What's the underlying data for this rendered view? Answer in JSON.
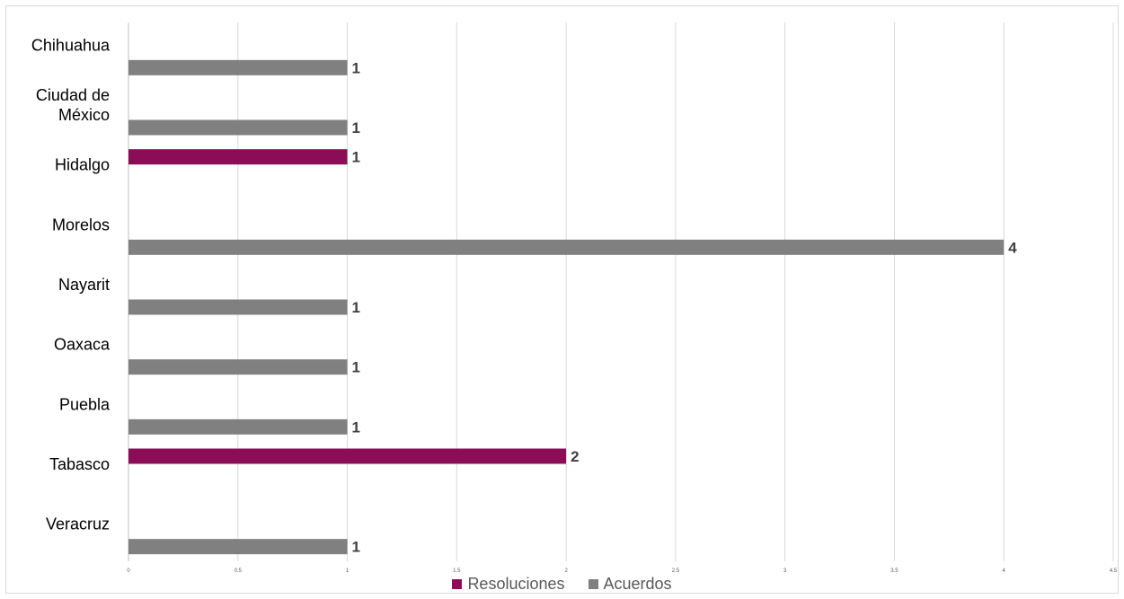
{
  "chart_data": {
    "type": "bar",
    "orientation": "horizontal",
    "categories": [
      "Chihuahua",
      "Ciudad de México",
      "Hidalgo",
      "Morelos",
      "Nayarit",
      "Oaxaca",
      "Puebla",
      "Tabasco",
      "Veracruz"
    ],
    "category_lines": [
      [
        "Chihuahua"
      ],
      [
        "Ciudad de",
        "México"
      ],
      [
        "Hidalgo"
      ],
      [
        "Morelos"
      ],
      [
        "Nayarit"
      ],
      [
        "Oaxaca"
      ],
      [
        "Puebla"
      ],
      [
        "Tabasco"
      ],
      [
        "Veracruz"
      ]
    ],
    "series": [
      {
        "name": "Resoluciones",
        "color": "#8b0d57",
        "values": [
          null,
          null,
          1,
          null,
          null,
          null,
          null,
          2,
          null
        ]
      },
      {
        "name": "Acuerdos",
        "color": "#808080",
        "values": [
          1,
          1,
          null,
          4,
          1,
          1,
          1,
          null,
          1
        ]
      }
    ],
    "xlim": [
      0,
      4.5
    ],
    "xticks": [
      "0",
      "0.5",
      "1",
      "1.5",
      "2",
      "2.5",
      "3",
      "3.5",
      "4",
      "4.5"
    ],
    "grid": true,
    "legend_position": "bottom",
    "title": "",
    "xlabel": "",
    "ylabel": ""
  }
}
